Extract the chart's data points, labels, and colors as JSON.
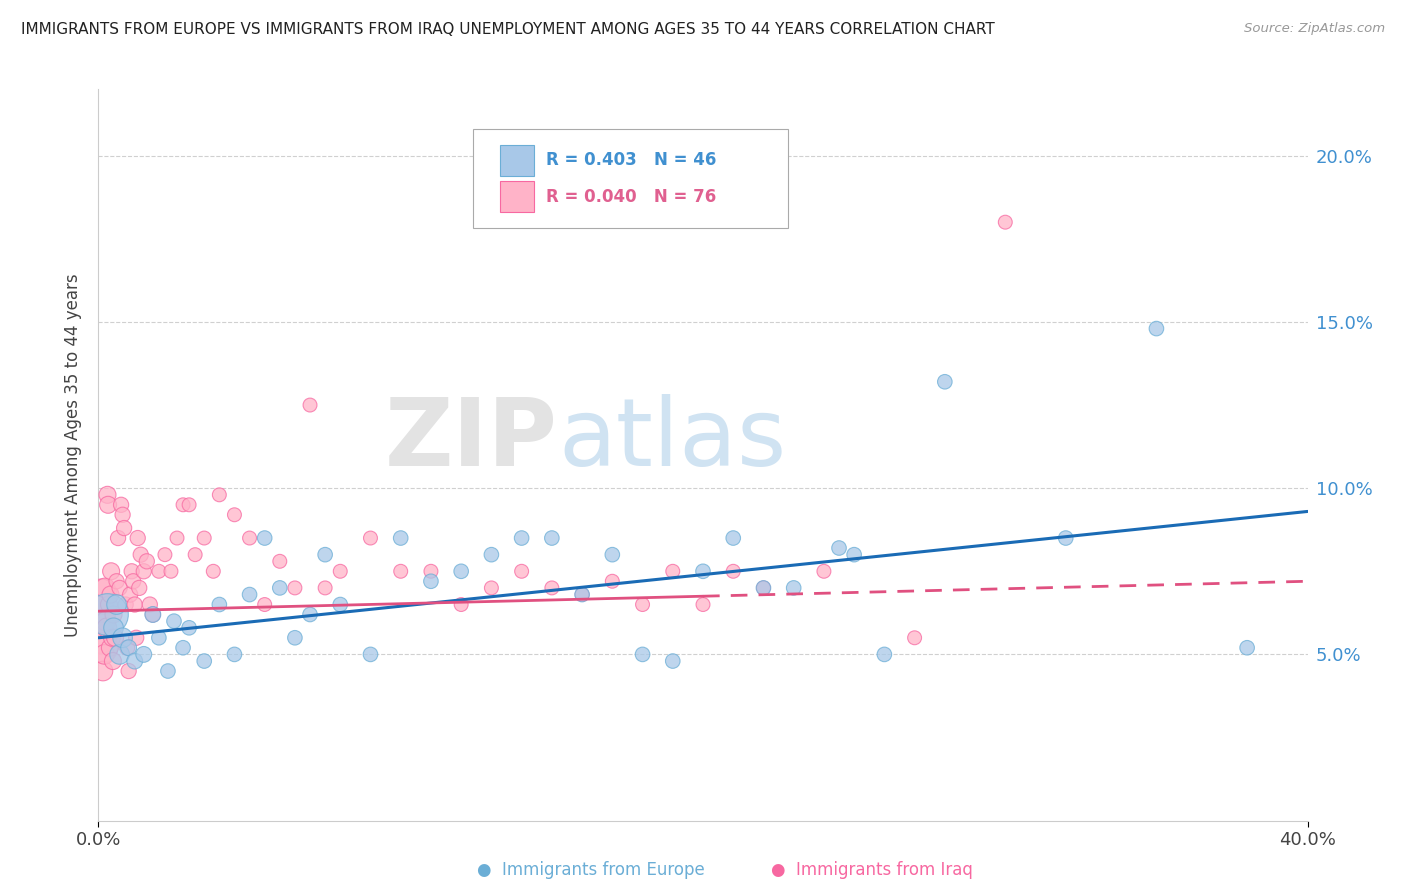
{
  "title": "IMMIGRANTS FROM EUROPE VS IMMIGRANTS FROM IRAQ UNEMPLOYMENT AMONG AGES 35 TO 44 YEARS CORRELATION CHART",
  "source": "Source: ZipAtlas.com",
  "ylabel": "Unemployment Among Ages 35 to 44 years",
  "xlim": [
    0.0,
    40.0
  ],
  "ylim": [
    0.0,
    22.0
  ],
  "yticks": [
    5.0,
    10.0,
    15.0,
    20.0
  ],
  "ytick_labels": [
    "5.0%",
    "10.0%",
    "15.0%",
    "20.0%"
  ],
  "xtick_labels": [
    "0.0%",
    "40.0%"
  ],
  "legend_europe_R": "0.403",
  "legend_europe_N": "46",
  "legend_iraq_R": "0.040",
  "legend_iraq_N": "76",
  "europe_color": "#a8c8e8",
  "europe_edge_color": "#6baed6",
  "iraq_color": "#ffb3c8",
  "iraq_edge_color": "#f768a1",
  "europe_line_color": "#1a6bb5",
  "iraq_line_color": "#e05080",
  "background_color": "#ffffff",
  "grid_color": "#d0d0d0",
  "legend_text_europe": "#4090d0",
  "legend_text_iraq": "#e06090",
  "ytick_color": "#4090d0",
  "watermark_zip": "ZIP",
  "watermark_atlas": "atlas",
  "europe_points": [
    [
      0.3,
      6.2
    ],
    [
      0.5,
      5.8
    ],
    [
      0.6,
      6.5
    ],
    [
      0.7,
      5.0
    ],
    [
      0.8,
      5.5
    ],
    [
      1.0,
      5.2
    ],
    [
      1.2,
      4.8
    ],
    [
      1.5,
      5.0
    ],
    [
      1.8,
      6.2
    ],
    [
      2.0,
      5.5
    ],
    [
      2.3,
      4.5
    ],
    [
      2.5,
      6.0
    ],
    [
      2.8,
      5.2
    ],
    [
      3.0,
      5.8
    ],
    [
      3.5,
      4.8
    ],
    [
      4.0,
      6.5
    ],
    [
      4.5,
      5.0
    ],
    [
      5.0,
      6.8
    ],
    [
      5.5,
      8.5
    ],
    [
      6.0,
      7.0
    ],
    [
      6.5,
      5.5
    ],
    [
      7.0,
      6.2
    ],
    [
      7.5,
      8.0
    ],
    [
      8.0,
      6.5
    ],
    [
      9.0,
      5.0
    ],
    [
      10.0,
      8.5
    ],
    [
      11.0,
      7.2
    ],
    [
      12.0,
      7.5
    ],
    [
      13.0,
      8.0
    ],
    [
      14.0,
      8.5
    ],
    [
      15.0,
      8.5
    ],
    [
      16.0,
      6.8
    ],
    [
      17.0,
      8.0
    ],
    [
      18.0,
      5.0
    ],
    [
      19.0,
      4.8
    ],
    [
      20.0,
      7.5
    ],
    [
      21.0,
      8.5
    ],
    [
      22.0,
      7.0
    ],
    [
      23.0,
      7.0
    ],
    [
      24.5,
      8.2
    ],
    [
      25.0,
      8.0
    ],
    [
      26.0,
      5.0
    ],
    [
      28.0,
      13.2
    ],
    [
      32.0,
      8.5
    ],
    [
      35.0,
      14.8
    ],
    [
      38.0,
      5.2
    ]
  ],
  "iraq_points": [
    [
      0.05,
      6.2
    ],
    [
      0.08,
      5.5
    ],
    [
      0.1,
      6.8
    ],
    [
      0.12,
      5.2
    ],
    [
      0.15,
      4.5
    ],
    [
      0.18,
      6.5
    ],
    [
      0.2,
      5.0
    ],
    [
      0.22,
      7.0
    ],
    [
      0.25,
      6.0
    ],
    [
      0.28,
      5.8
    ],
    [
      0.3,
      9.8
    ],
    [
      0.32,
      9.5
    ],
    [
      0.35,
      6.5
    ],
    [
      0.38,
      5.2
    ],
    [
      0.4,
      6.8
    ],
    [
      0.42,
      7.5
    ],
    [
      0.45,
      5.5
    ],
    [
      0.48,
      4.8
    ],
    [
      0.5,
      6.2
    ],
    [
      0.55,
      5.5
    ],
    [
      0.6,
      7.2
    ],
    [
      0.65,
      8.5
    ],
    [
      0.7,
      7.0
    ],
    [
      0.75,
      9.5
    ],
    [
      0.8,
      9.2
    ],
    [
      0.85,
      8.8
    ],
    [
      0.9,
      6.5
    ],
    [
      0.95,
      5.2
    ],
    [
      1.0,
      4.5
    ],
    [
      1.05,
      6.8
    ],
    [
      1.1,
      7.5
    ],
    [
      1.15,
      7.2
    ],
    [
      1.2,
      6.5
    ],
    [
      1.25,
      5.5
    ],
    [
      1.3,
      8.5
    ],
    [
      1.35,
      7.0
    ],
    [
      1.4,
      8.0
    ],
    [
      1.5,
      7.5
    ],
    [
      1.6,
      7.8
    ],
    [
      1.7,
      6.5
    ],
    [
      1.8,
      6.2
    ],
    [
      2.0,
      7.5
    ],
    [
      2.2,
      8.0
    ],
    [
      2.4,
      7.5
    ],
    [
      2.6,
      8.5
    ],
    [
      2.8,
      9.5
    ],
    [
      3.0,
      9.5
    ],
    [
      3.2,
      8.0
    ],
    [
      3.5,
      8.5
    ],
    [
      3.8,
      7.5
    ],
    [
      4.0,
      9.8
    ],
    [
      4.5,
      9.2
    ],
    [
      5.0,
      8.5
    ],
    [
      5.5,
      6.5
    ],
    [
      6.0,
      7.8
    ],
    [
      6.5,
      7.0
    ],
    [
      7.0,
      12.5
    ],
    [
      7.5,
      7.0
    ],
    [
      8.0,
      7.5
    ],
    [
      9.0,
      8.5
    ],
    [
      10.0,
      7.5
    ],
    [
      11.0,
      7.5
    ],
    [
      12.0,
      6.5
    ],
    [
      13.0,
      7.0
    ],
    [
      14.0,
      7.5
    ],
    [
      15.0,
      7.0
    ],
    [
      16.0,
      6.8
    ],
    [
      17.0,
      7.2
    ],
    [
      18.0,
      6.5
    ],
    [
      19.0,
      7.5
    ],
    [
      20.0,
      6.5
    ],
    [
      21.0,
      7.5
    ],
    [
      22.0,
      7.0
    ],
    [
      24.0,
      7.5
    ],
    [
      27.0,
      5.5
    ],
    [
      30.0,
      18.0
    ]
  ],
  "iraq_large_indices": [
    0,
    1,
    2,
    3,
    4,
    5,
    6,
    7,
    8,
    9
  ],
  "europe_line_manual": [
    0.0,
    5.5,
    40.0,
    9.3
  ],
  "iraq_line_manual": [
    0.0,
    6.3,
    40.0,
    7.2
  ]
}
